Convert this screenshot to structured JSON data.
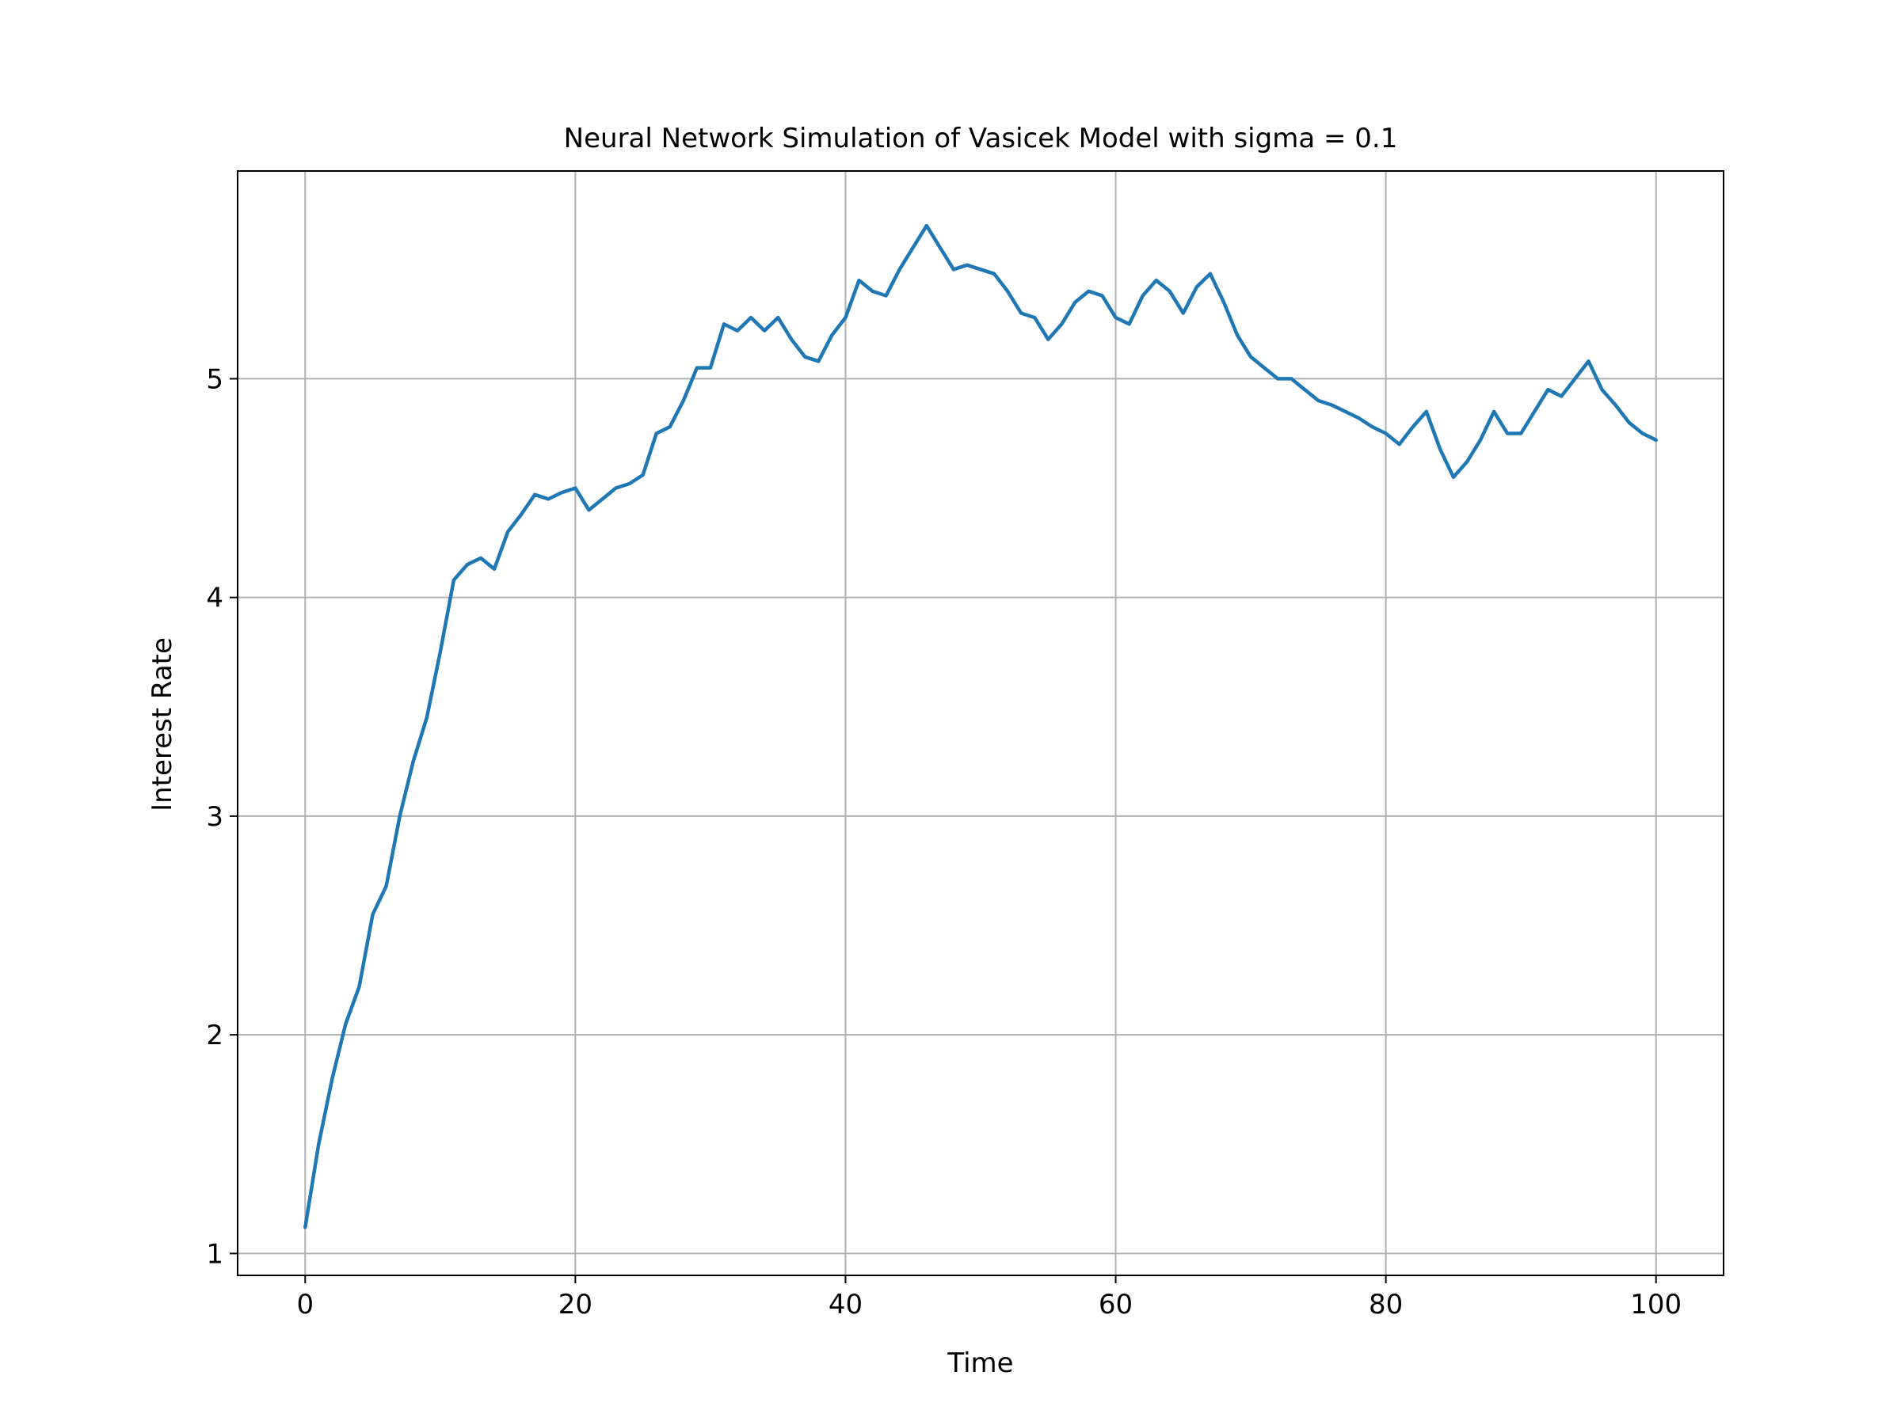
{
  "chart_data": {
    "type": "line",
    "title": "Neural Network Simulation of Vasicek Model with sigma = 0.1",
    "xlabel": "Time",
    "ylabel": "Interest Rate",
    "xlim": [
      -5,
      105
    ],
    "ylim": [
      0.9,
      5.95
    ],
    "xticks": [
      0,
      20,
      40,
      60,
      80,
      100
    ],
    "yticks": [
      1,
      2,
      3,
      4,
      5
    ],
    "xtick_labels": [
      "0",
      "20",
      "40",
      "60",
      "80",
      "100"
    ],
    "ytick_labels": [
      "1",
      "2",
      "3",
      "4",
      "5"
    ],
    "grid": true,
    "line_color": "#1f77b4",
    "series": [
      {
        "x": [
          0,
          1,
          2,
          3,
          4,
          5,
          6,
          7,
          8,
          9,
          10,
          11,
          12,
          13,
          14,
          15,
          16,
          17,
          18,
          19,
          20,
          21,
          22,
          23,
          24,
          25,
          26,
          27,
          28,
          29,
          30,
          31,
          32,
          33,
          34,
          35,
          36,
          37,
          38,
          39,
          40,
          41,
          42,
          43,
          44,
          45,
          46,
          47,
          48,
          49,
          50,
          51,
          52,
          53,
          54,
          55,
          56,
          57,
          58,
          59,
          60,
          61,
          62,
          63,
          64,
          65,
          66,
          67,
          68,
          69,
          70,
          71,
          72,
          73,
          74,
          75,
          76,
          77,
          78,
          79,
          80,
          81,
          82,
          83,
          84,
          85,
          86,
          87,
          88,
          89,
          90,
          91,
          92,
          93,
          94,
          95,
          96,
          97,
          98,
          99,
          100
        ],
        "y": [
          1.12,
          1.5,
          1.8,
          2.05,
          2.22,
          2.55,
          2.68,
          3.0,
          3.25,
          3.45,
          3.75,
          4.08,
          4.15,
          4.18,
          4.13,
          4.3,
          4.38,
          4.47,
          4.45,
          4.48,
          4.5,
          4.4,
          4.45,
          4.5,
          4.52,
          4.56,
          4.75,
          4.78,
          4.9,
          5.05,
          5.05,
          5.25,
          5.22,
          5.28,
          5.22,
          5.28,
          5.18,
          5.1,
          5.08,
          5.2,
          5.28,
          5.45,
          5.4,
          5.38,
          5.5,
          5.6,
          5.7,
          5.6,
          5.5,
          5.52,
          5.5,
          5.48,
          5.4,
          5.3,
          5.28,
          5.18,
          5.25,
          5.35,
          5.4,
          5.38,
          5.28,
          5.25,
          5.38,
          5.45,
          5.4,
          5.3,
          5.42,
          5.48,
          5.35,
          5.2,
          5.1,
          5.05,
          5.0,
          5.0,
          4.95,
          4.9,
          4.88,
          4.85,
          4.82,
          4.78,
          4.75,
          4.7,
          4.78,
          4.85,
          4.68,
          4.55,
          4.62,
          4.72,
          4.85,
          4.75,
          4.75,
          4.85,
          4.95,
          4.92,
          5.0,
          5.08,
          4.95,
          4.88,
          4.8,
          4.75,
          4.72
        ]
      }
    ]
  }
}
